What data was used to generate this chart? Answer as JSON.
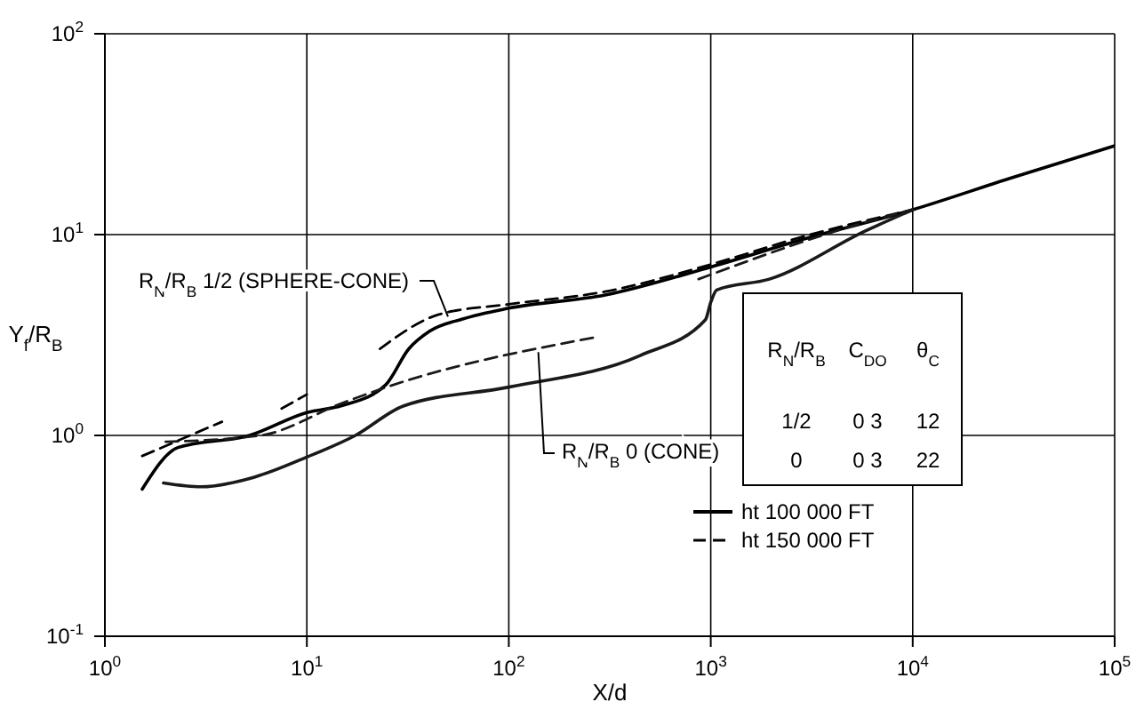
{
  "chart_data": {
    "type": "line",
    "xlabel": "X/d",
    "ylabel": "Y$_{f}$/R$_{B}$",
    "log": "xy",
    "grid": true,
    "legend": "bottom right",
    "xlim": [
      1,
      100000
    ],
    "ylim": [
      0.1,
      100
    ],
    "xticks": [
      {
        "value": 1,
        "label": "10$^{0}$"
      },
      {
        "value": 10,
        "label": "10$^{1}$"
      },
      {
        "value": 100,
        "label": "10$^{2}$"
      },
      {
        "value": 1000,
        "label": "10$^{3}$"
      },
      {
        "value": 10000,
        "label": "10$^{4}$"
      },
      {
        "value": 100000,
        "label": "10$^{5}$"
      }
    ],
    "yticks": [
      {
        "value": 0.1,
        "label": "10$^{-1}$"
      },
      {
        "value": 1,
        "label": "10$^{0}$"
      },
      {
        "value": 10,
        "label": "10$^{1}$"
      },
      {
        "value": 100,
        "label": "10$^{2}$"
      }
    ],
    "series": [
      {
        "name": "ht 100 000 FT",
        "color": "#000000",
        "line_style": "solid",
        "x": [
          1.53,
          2.3,
          5.2,
          10,
          15,
          24.5,
          32,
          40.5,
          59,
          100,
          300,
          1000,
          3000,
          10000,
          30000,
          100000
        ],
        "values": [
          0.54,
          0.87,
          1.0,
          1.3,
          1.41,
          1.78,
          2.7,
          3.3,
          3.8,
          4.3,
          5.0,
          6.9,
          9.6,
          13.3,
          19,
          27.7
        ]
      },
      {
        "color": "#1a1a1a",
        "line_style": "solid",
        "x": [
          1.95,
          3,
          5.5,
          10,
          17.4,
          30,
          100,
          447,
          940,
          1000,
          1070,
          1950,
          5800,
          10000
        ],
        "values": [
          0.58,
          0.555,
          0.62,
          0.78,
          1.0,
          1.4,
          1.74,
          2.5,
          3.76,
          4.6,
          5.3,
          6.0,
          10.4,
          13.3
        ]
      },
      {
        "name": "ht 150 000 FT",
        "color": "#000000",
        "line_style": "dashed",
        "x": [
          1.53,
          3.8,
          5,
          7.5,
          10,
          14,
          23,
          45,
          100,
          300,
          1000,
          3000,
          10000
        ],
        "values": [
          0.79,
          1.17,
          null,
          1.36,
          1.6,
          null,
          2.7,
          4.0,
          4.5,
          5.2,
          7.1,
          9.9,
          13.3
        ]
      },
      {
        "color": "#1a1a1a",
        "line_style": "dashed",
        "x": [
          2.0,
          5.9,
          15,
          24,
          277,
          400,
          870,
          5800,
          10000
        ],
        "values": [
          0.93,
          1.0,
          1.45,
          1.72,
          3.1,
          null,
          6.0,
          11.5,
          13.3
        ]
      }
    ],
    "annotations": [
      {
        "text": "R$_{N}$/R$_{B}$ 1/2 (SPHERE-CONE)",
        "x": 50,
        "y": 3.9
      },
      {
        "text": "R$_{N}$/R$_{B}$ 0 (CONE)",
        "x": 140,
        "y": 2.6
      },
      "R$_{N}$/R$_{B}$",
      "C$_{DO}$",
      "θ$_{C}$",
      "1/2",
      "0 3",
      "12",
      "0",
      "0 3",
      "22"
    ]
  }
}
